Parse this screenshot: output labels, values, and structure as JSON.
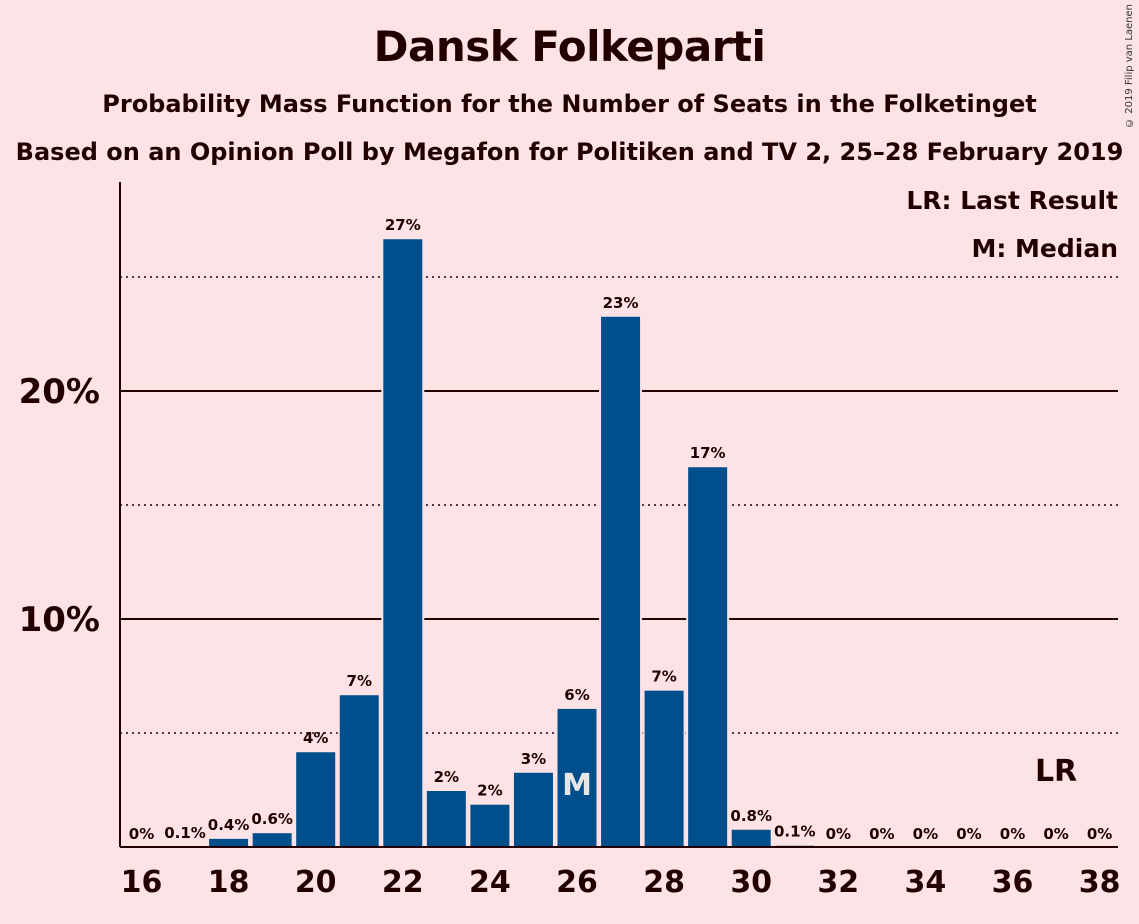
{
  "chart_data": {
    "type": "bar",
    "title": "Dansk Folkeparti",
    "subtitle": "Probability Mass Function for the Number of Seats in the Folketinget",
    "subtitle2": "Based on an Opinion Poll by Megafon for Politiken and TV 2, 25–28 February 2019",
    "copyright": "© 2019 Filip van Laenen",
    "x": [
      16,
      17,
      18,
      19,
      20,
      21,
      22,
      23,
      24,
      25,
      26,
      27,
      28,
      29,
      30,
      31,
      32,
      33,
      34,
      35,
      36,
      37,
      38
    ],
    "values": [
      0,
      0.05,
      0.4,
      0.65,
      4.2,
      6.7,
      26.7,
      2.5,
      1.9,
      3.3,
      6.1,
      23.3,
      6.9,
      16.7,
      0.8,
      0.1,
      0,
      0,
      0,
      0,
      0,
      0,
      0
    ],
    "labels": [
      "0%",
      "0.1%",
      "0.4%",
      "0.6%",
      "4%",
      "7%",
      "27%",
      "2%",
      "2%",
      "3%",
      "6%",
      "23%",
      "7%",
      "17%",
      "0.8%",
      "0.1%",
      "0%",
      "0%",
      "0%",
      "0%",
      "0%",
      "0%",
      "0%"
    ],
    "x_tick_labels": [
      "16",
      "18",
      "20",
      "22",
      "24",
      "26",
      "28",
      "30",
      "32",
      "34",
      "36",
      "38"
    ],
    "y_ticks": [
      10,
      20
    ],
    "y_tick_labels": [
      "10%",
      "20%"
    ],
    "y_dotted_lines": [
      5,
      15,
      25
    ],
    "ylim": [
      0,
      29
    ],
    "median_seat": 26,
    "median_label": "M",
    "last_result_seat": 37,
    "last_result_label": "LR",
    "legend": [
      "LR: Last Result",
      "M: Median"
    ],
    "legend_position": "top-right",
    "colors": {
      "bar": "#004f8c",
      "background": "#fde3e6",
      "text": "#220000"
    }
  }
}
